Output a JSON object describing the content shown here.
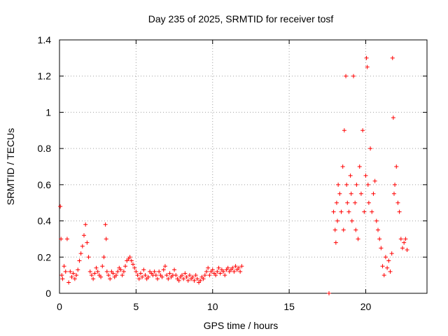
{
  "chart_data": {
    "type": "scatter",
    "title": "Day 235 of 2025, SRMTID for receiver tosf",
    "xlabel": "GPS time / hours",
    "ylabel": "SRMTID / TECUs",
    "xlim": [
      0,
      24
    ],
    "ylim": [
      0,
      1.4
    ],
    "x_ticks": [
      0,
      5,
      10,
      15,
      20
    ],
    "y_ticks": [
      0,
      0.2,
      0.4,
      0.6,
      0.8,
      1,
      1.2,
      1.4
    ],
    "x_tick_labels": [
      "0",
      "5",
      "10",
      "15",
      "20"
    ],
    "y_tick_labels": [
      "0",
      "0.2",
      "0.4",
      "0.6",
      "0.8",
      "1",
      "1.2",
      "1.4"
    ],
    "grid": true,
    "marker": "+",
    "color": "#ff0000",
    "series": [
      {
        "name": "SRMTID",
        "x": [
          0.05,
          0.1,
          0.15,
          0.2,
          0.3,
          0.4,
          0.5,
          0.6,
          0.7,
          0.8,
          0.9,
          1.0,
          1.1,
          1.2,
          1.3,
          1.4,
          1.5,
          1.6,
          1.7,
          1.8,
          1.9,
          2.0,
          2.1,
          2.2,
          2.3,
          2.4,
          2.5,
          2.6,
          2.7,
          2.8,
          2.9,
          3.0,
          3.05,
          3.1,
          3.2,
          3.3,
          3.4,
          3.5,
          3.6,
          3.7,
          3.8,
          3.9,
          4.0,
          4.1,
          4.2,
          4.3,
          4.4,
          4.5,
          4.6,
          4.7,
          4.8,
          4.9,
          5.0,
          5.1,
          5.2,
          5.3,
          5.4,
          5.5,
          5.6,
          5.7,
          5.8,
          5.9,
          6.0,
          6.1,
          6.2,
          6.3,
          6.4,
          6.5,
          6.6,
          6.7,
          6.8,
          6.9,
          7.0,
          7.1,
          7.2,
          7.3,
          7.4,
          7.5,
          7.6,
          7.7,
          7.8,
          7.9,
          8.0,
          8.1,
          8.2,
          8.3,
          8.4,
          8.5,
          8.6,
          8.7,
          8.8,
          8.9,
          9.0,
          9.1,
          9.2,
          9.3,
          9.4,
          9.5,
          9.6,
          9.7,
          9.8,
          9.9,
          10.0,
          10.1,
          10.2,
          10.3,
          10.4,
          10.5,
          10.6,
          10.7,
          10.8,
          10.9,
          11.0,
          11.1,
          11.2,
          11.3,
          11.4,
          11.5,
          11.6,
          11.7,
          11.8,
          11.9,
          17.6,
          17.9,
          18.0,
          18.05,
          18.1,
          18.15,
          18.2,
          18.3,
          18.4,
          18.5,
          18.55,
          18.6,
          18.7,
          18.75,
          18.8,
          18.9,
          19.0,
          19.05,
          19.1,
          19.2,
          19.3,
          19.35,
          19.4,
          19.5,
          19.6,
          19.7,
          19.8,
          19.9,
          20.0,
          20.05,
          20.1,
          20.15,
          20.2,
          20.3,
          20.4,
          20.5,
          20.6,
          20.7,
          20.8,
          20.9,
          21.0,
          21.1,
          21.2,
          21.3,
          21.4,
          21.5,
          21.6,
          21.7,
          21.75,
          21.8,
          21.85,
          21.9,
          22.0,
          22.1,
          22.2,
          22.3,
          22.4,
          22.5,
          22.6,
          22.7
        ],
        "y": [
          0.48,
          0.3,
          0.1,
          0.08,
          0.15,
          0.12,
          0.3,
          0.06,
          0.12,
          0.09,
          0.11,
          0.08,
          0.1,
          0.13,
          0.18,
          0.22,
          0.26,
          0.32,
          0.38,
          0.28,
          0.2,
          0.12,
          0.1,
          0.08,
          0.11,
          0.14,
          0.12,
          0.1,
          0.09,
          0.15,
          0.2,
          0.38,
          0.3,
          0.12,
          0.1,
          0.08,
          0.12,
          0.11,
          0.09,
          0.1,
          0.12,
          0.14,
          0.13,
          0.1,
          0.12,
          0.15,
          0.18,
          0.19,
          0.2,
          0.18,
          0.16,
          0.14,
          0.12,
          0.1,
          0.08,
          0.11,
          0.09,
          0.13,
          0.1,
          0.08,
          0.09,
          0.12,
          0.11,
          0.1,
          0.12,
          0.1,
          0.08,
          0.12,
          0.1,
          0.09,
          0.13,
          0.15,
          0.1,
          0.08,
          0.11,
          0.09,
          0.1,
          0.13,
          0.1,
          0.08,
          0.07,
          0.09,
          0.1,
          0.08,
          0.11,
          0.09,
          0.07,
          0.1,
          0.08,
          0.09,
          0.07,
          0.1,
          0.08,
          0.06,
          0.07,
          0.09,
          0.08,
          0.1,
          0.12,
          0.14,
          0.1,
          0.12,
          0.13,
          0.11,
          0.1,
          0.12,
          0.14,
          0.11,
          0.13,
          0.12,
          0.1,
          0.13,
          0.14,
          0.12,
          0.13,
          0.14,
          0.12,
          0.15,
          0.13,
          0.14,
          0.12,
          0.15,
          0.0,
          0.45,
          0.35,
          0.28,
          0.5,
          0.4,
          0.6,
          0.55,
          0.45,
          0.7,
          0.35,
          0.9,
          1.2,
          0.6,
          0.5,
          0.45,
          0.65,
          0.55,
          0.4,
          1.2,
          0.5,
          0.35,
          0.6,
          0.3,
          0.7,
          0.55,
          0.9,
          0.45,
          0.65,
          1.3,
          1.25,
          0.6,
          0.5,
          0.8,
          0.45,
          0.55,
          0.62,
          0.4,
          0.35,
          0.3,
          0.25,
          0.15,
          0.1,
          0.2,
          0.14,
          0.18,
          0.12,
          0.22,
          1.3,
          0.97,
          0.55,
          0.6,
          0.7,
          0.5,
          0.45,
          0.3,
          0.25,
          0.28,
          0.3,
          0.24
        ]
      }
    ]
  }
}
